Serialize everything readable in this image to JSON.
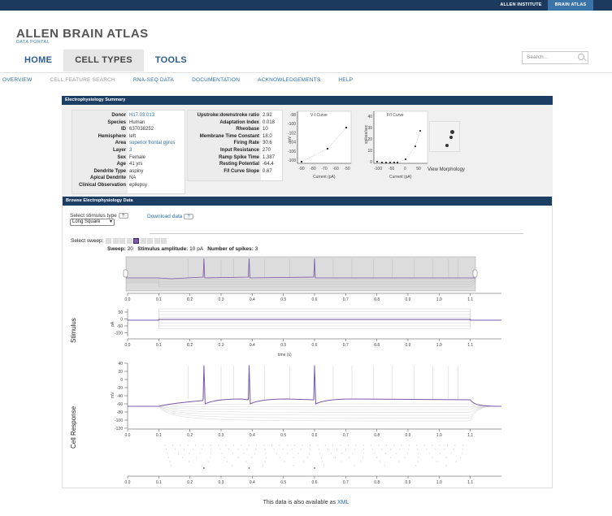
{
  "topbar": {
    "link1": "ALLEN INSTITUTE",
    "link2": "BRAIN ATLAS"
  },
  "logo": {
    "title": "ALLEN BRAIN ATLAS",
    "subtitle": "DATA PORTAL"
  },
  "mainnav": {
    "home": "HOME",
    "cell_types": "CELL TYPES",
    "tools": "TOOLS"
  },
  "search": {
    "placeholder": "Search..."
  },
  "subnav": [
    "OVERVIEW",
    "CELL FEATURE SEARCH",
    "RNA-SEQ DATA",
    "DOCUMENTATION",
    "ACKNOWLEDGEMENTS",
    "HELP"
  ],
  "summary": {
    "title": "Electrophysiology Summary",
    "donor_table": [
      {
        "k": "Donor",
        "v": "H17.03.013",
        "link": true
      },
      {
        "k": "Species",
        "v": "Human"
      },
      {
        "k": "ID",
        "v": "637038252"
      },
      {
        "k": "Hemisphere",
        "v": "left"
      },
      {
        "k": "Area",
        "v": "superior frontal gyrus",
        "link": true
      },
      {
        "k": "Layer",
        "v": "3",
        "link": true
      },
      {
        "k": "Sex",
        "v": "Female"
      },
      {
        "k": "Age",
        "v": "41 yrs"
      },
      {
        "k": "Dendrite Type",
        "v": "aspiny"
      },
      {
        "k": "Apical Dendrite",
        "v": "NA"
      },
      {
        "k": "Clinical Observation",
        "v": "epilepsy"
      }
    ],
    "feature_table": [
      {
        "k": "Upstroke:downstroke ratio",
        "v": "2.92"
      },
      {
        "k": "Adaptation Index",
        "v": "0.018"
      },
      {
        "k": "Rheobase",
        "v": "10"
      },
      {
        "k": "Membrane Time Constant",
        "v": "18.0"
      },
      {
        "k": "Firing Rate",
        "v": "30.6"
      },
      {
        "k": "Input Resistance",
        "v": "270"
      },
      {
        "k": "Ramp Spike Time",
        "v": "1.387"
      },
      {
        "k": "Resting Potential",
        "v": "-64.4"
      },
      {
        "k": "F/I Curve Slope",
        "v": "0.67"
      }
    ],
    "vi_curve": {
      "title": "V-I Curve",
      "xlabel": "Current (pA)",
      "ylabel": "mV",
      "yticks": [
        "-98",
        "-100",
        "-102",
        "-104",
        "-106",
        "-108"
      ],
      "xticks": [
        "-90",
        "-80",
        "-70",
        "-60",
        "-50"
      ]
    },
    "fi_curve": {
      "title": "F/I Curve",
      "xlabel": "Current (pA)",
      "ylabel": "spikes/sec",
      "yticks": [
        "40",
        "30",
        "20",
        "10",
        "0"
      ],
      "xticks": [
        "-100",
        "-50",
        "0",
        "50"
      ]
    },
    "morphology_label": "View Morphology"
  },
  "browse": {
    "title": "Browse Electrophysiology Data",
    "stimulus_label": "Select stimulus type",
    "stimulus_value": "Long Square",
    "download_label": "Download data",
    "help": "?",
    "select_sweep_label": "Select sweep:",
    "sweep_label": "Sweep:",
    "sweep_value": "20",
    "amp_label": "Stimulus amplitude:",
    "amp_value": "10 pA",
    "spikes_label": "Number of spikes:",
    "spikes_value": "3",
    "stimulus_axis": "Stimulus",
    "response_axis": "Cell Response",
    "time_label": "time (s)",
    "stim_unit": "pA",
    "resp_unit": "mV",
    "xticks": [
      "0.0",
      "0.1",
      "0.2",
      "0.3",
      "0.4",
      "0.5",
      "0.6",
      "0.7",
      "0.8",
      "0.9",
      "1.0",
      "1.1"
    ],
    "stim_yticks": [
      "50",
      "0",
      "-50",
      "-100"
    ],
    "resp_yticks": [
      "40",
      "20",
      "0",
      "-20",
      "-40",
      "-60",
      "-80",
      "-100",
      "-120"
    ]
  },
  "footer": {
    "text": "This data is also available as ",
    "link": "XML"
  },
  "colors": {
    "navy": "#1b3a5e",
    "accent": "#7b58a8",
    "link": "#2a6ea8"
  }
}
